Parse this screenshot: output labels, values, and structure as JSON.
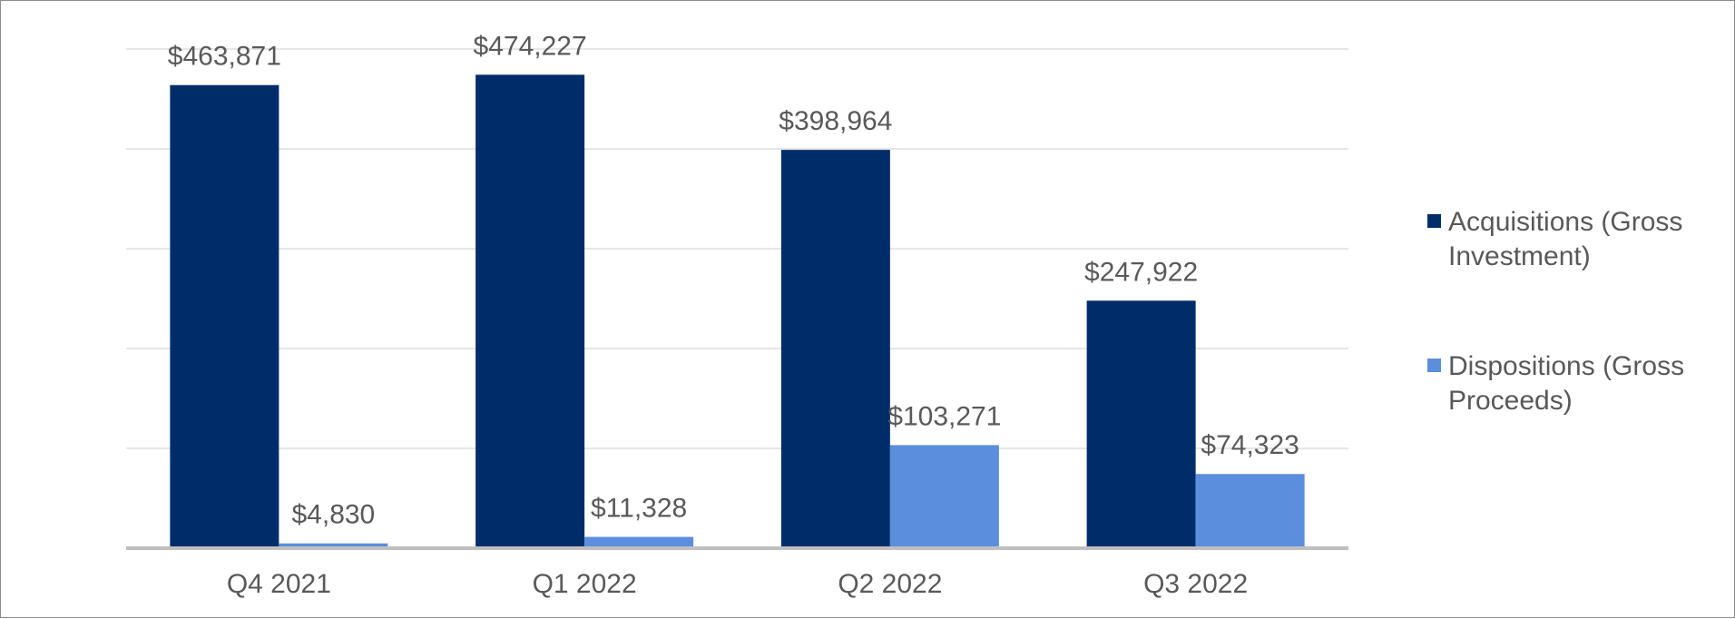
{
  "chart_data": {
    "type": "bar",
    "categories": [
      "Q4 2021",
      "Q1 2022",
      "Q2 2022",
      "Q3 2022"
    ],
    "series": [
      {
        "name": "Acquisitions (Gross Investment)",
        "legend_lines": [
          "Acquisitions (Gross",
          "Investment)"
        ],
        "values": [
          463871,
          474227,
          398964,
          247922
        ],
        "labels": [
          "$463,871",
          "$474,227",
          "$398,964",
          "$247,922"
        ],
        "color": "#002D6A"
      },
      {
        "name": "Dispositions (Gross Proceeds)",
        "legend_lines": [
          "Dispositions (Gross",
          "Proceeds)"
        ],
        "values": [
          4830,
          11328,
          103271,
          74323
        ],
        "labels": [
          "$4,830",
          "$11,328",
          "$103,271",
          "$74,323"
        ],
        "color": "#5B8EDC"
      }
    ],
    "ylim": [
      0,
      500000
    ],
    "grid": true,
    "legend_position": "right",
    "title": "",
    "xlabel": "",
    "ylabel": ""
  },
  "colors": {
    "gridline": "#E6E6E6",
    "axis": "#BFBFBF",
    "text": "#595959",
    "border": "#8C8C8C"
  }
}
